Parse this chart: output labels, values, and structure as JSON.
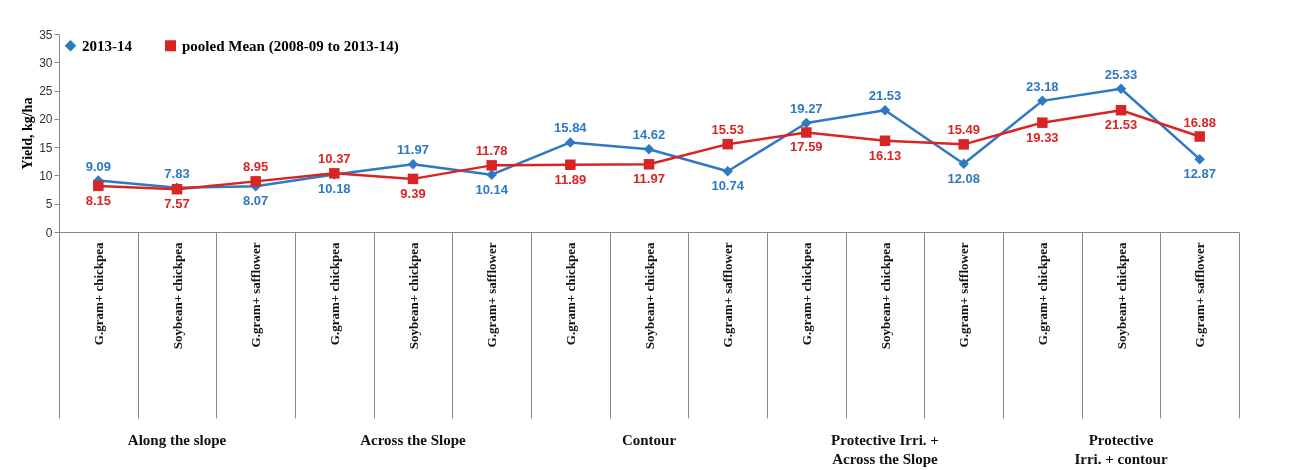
{
  "chart_data": {
    "type": "line",
    "ylabel": "Yield, kg/ha",
    "ylim": [
      0,
      35
    ],
    "yticks": [
      0,
      5,
      10,
      15,
      20,
      25,
      30,
      35
    ],
    "legend": "top left",
    "data_labels": true,
    "categories": [
      "G.gram+ chickpea",
      "Soybean+ chickpea",
      "G.gram+ safflower",
      "G.gram+ chickpea",
      "Soybean+ chickpea",
      "G.gram+ safflower",
      "G.gram+ chickpea",
      "Soybean+ chickpea",
      "G.gram+ safflower",
      "G.gram+ chickpea",
      "Soybean+ chickpea",
      "G.gram+ safflower",
      "G.gram+ chickpea",
      "Soybean+ chickpea",
      "G.gram+ safflower"
    ],
    "series": [
      {
        "name": "2013-14",
        "color": "#2f78c4",
        "marker": "diamond",
        "values": [
          9.09,
          7.83,
          8.07,
          10.18,
          11.97,
          10.14,
          15.84,
          14.62,
          10.74,
          19.27,
          21.53,
          12.08,
          23.18,
          25.33,
          12.87
        ]
      },
      {
        "name": "pooled Mean (2008-09 to 2013-14)",
        "color": "#d92424",
        "marker": "square",
        "values": [
          8.15,
          7.57,
          8.95,
          10.37,
          9.39,
          11.78,
          11.89,
          11.97,
          15.53,
          17.59,
          16.13,
          15.49,
          19.33,
          21.53,
          16.88
        ]
      }
    ],
    "annotations": [
      "Along the slope",
      "Across the Slope",
      "Contour",
      "Protective Irri. + Across the Slope",
      "Protective Irri. + contour"
    ]
  }
}
